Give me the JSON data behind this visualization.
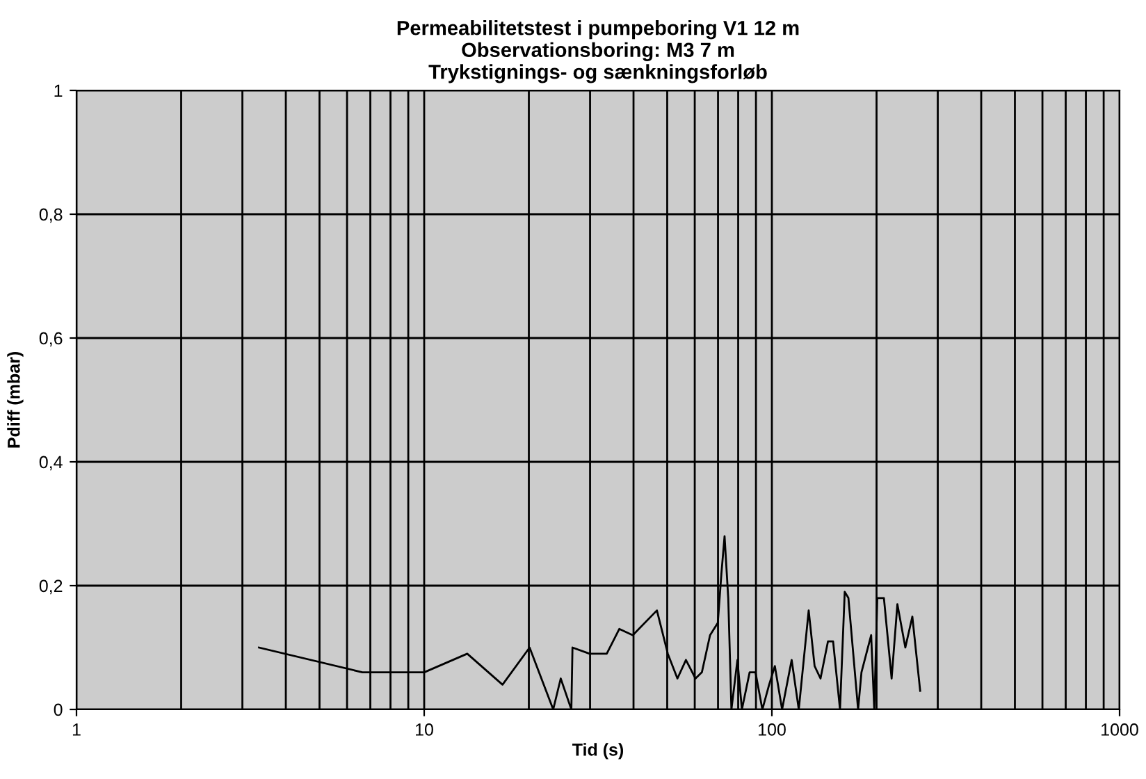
{
  "chart_data": {
    "type": "line",
    "title": "Permeabilitetstest i pumpeboring V1 12 m\nObservationsboring: M3 7 m\nTrykstignings- og sænkningsforløb",
    "xlabel": "Tid (s)",
    "ylabel": "Pdiff (mbar)",
    "log": "x",
    "xlim": [
      1,
      1000
    ],
    "xticks": [
      1,
      10,
      100,
      1000
    ],
    "ylim": [
      0,
      1
    ],
    "yticks": [
      {
        "value": 0,
        "label": "0"
      },
      {
        "value": 0.2,
        "label": "0,2"
      },
      {
        "value": 0.4,
        "label": "0,4"
      },
      {
        "value": 0.6,
        "label": "0,6"
      },
      {
        "value": 0.8,
        "label": "0,8"
      },
      {
        "value": 1,
        "label": "1"
      }
    ],
    "grid": true,
    "legend": false,
    "marker": "none",
    "line_style": "solid",
    "series": [
      {
        "color": "#000000",
        "x": [
          3.35,
          6.64,
          10.0,
          13.3,
          16.8,
          20.1,
          23.5,
          24.7,
          26.5,
          26.7,
          29.9,
          33.5,
          36.4,
          39.8,
          46.7,
          50.2,
          53.5,
          56.6,
          60.3,
          62.9,
          66.4,
          69.9,
          71.6,
          73.1,
          74.9,
          76.5,
          79.6,
          82,
          86.3,
          89.7,
          93.9,
          98.2,
          102,
          107,
          114,
          119.5,
          127.6,
          132.7,
          138,
          145,
          150,
          157,
          162,
          166,
          177,
          181,
          193,
          197,
          201,
          210,
          221,
          229.6,
          242,
          253.5,
          267
        ],
        "values": [
          0.1,
          0.06,
          0.06,
          0.09,
          0.04,
          0.1,
          0.0,
          0.05,
          0.0,
          0.1,
          0.09,
          0.09,
          0.13,
          0.12,
          0.16,
          0.09,
          0.05,
          0.08,
          0.05,
          0.06,
          0.12,
          0.14,
          0.22,
          0.28,
          0.18,
          0.0,
          0.08,
          0.0,
          0.06,
          0.06,
          0.0,
          0.04,
          0.07,
          0.0,
          0.08,
          0.0,
          0.16,
          0.07,
          0.05,
          0.11,
          0.11,
          0.0,
          0.19,
          0.18,
          0.0,
          0.06,
          0.12,
          0.0,
          0.18,
          0.18,
          0.05,
          0.17,
          0.1,
          0.15,
          0.03
        ]
      }
    ]
  }
}
